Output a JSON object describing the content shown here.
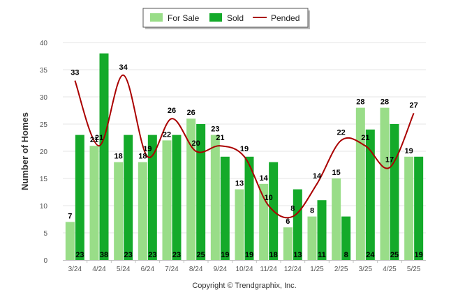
{
  "chart_data": {
    "type": "bar",
    "categories": [
      "3/24",
      "4/24",
      "5/24",
      "6/24",
      "7/24",
      "8/24",
      "9/24",
      "10/24",
      "11/24",
      "12/24",
      "1/25",
      "2/25",
      "3/25",
      "4/25",
      "5/25"
    ],
    "series": [
      {
        "name": "For Sale",
        "type": "bar",
        "color": "#99dd88",
        "values": [
          7,
          21,
          18,
          18,
          22,
          26,
          23,
          13,
          14,
          6,
          8,
          15,
          28,
          28,
          19
        ]
      },
      {
        "name": "Sold",
        "type": "bar",
        "color": "#14aa2a",
        "values": [
          23,
          38,
          23,
          23,
          23,
          25,
          19,
          19,
          18,
          13,
          11,
          8,
          24,
          25,
          19
        ]
      },
      {
        "name": "Pended",
        "type": "line",
        "color": "#aa0000",
        "values": [
          33,
          21,
          34,
          19,
          26,
          20,
          21,
          19,
          10,
          8,
          14,
          22,
          21,
          17,
          27
        ]
      }
    ],
    "ylabel": "Number of Homes",
    "xlabel": "",
    "ylim": [
      0,
      40
    ],
    "yticks": [
      0,
      5,
      10,
      15,
      20,
      25,
      30,
      35,
      40
    ],
    "grid": true,
    "legend_position": "top-center",
    "credit": "Copyright © Trendgraphix, Inc."
  }
}
